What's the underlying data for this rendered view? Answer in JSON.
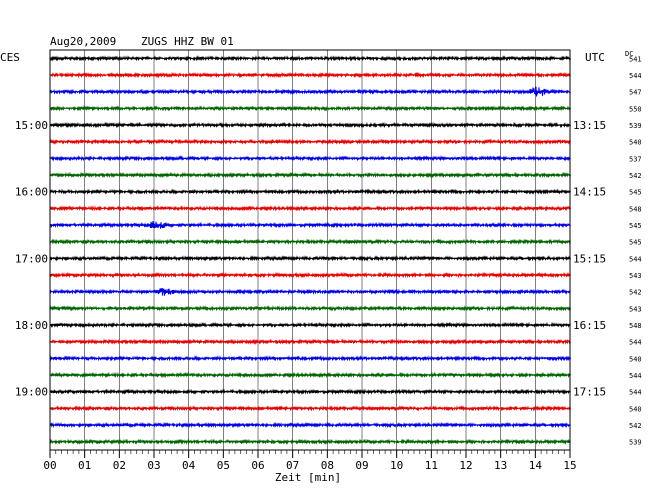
{
  "header": {
    "date": "Aug20,2009",
    "station": "ZUGS HHZ BW 01",
    "left_timezone": "CES",
    "right_timezone": "UTC",
    "dc_label": "DC"
  },
  "chart_data": {
    "type": "line",
    "title": "Aug20,2009   ZUGS HHZ BW 01",
    "xlabel": "Zeit [min]",
    "xlim": [
      0,
      15
    ],
    "x_ticks": [
      "00",
      "01",
      "02",
      "03",
      "04",
      "05",
      "06",
      "07",
      "08",
      "09",
      "10",
      "11",
      "12",
      "13",
      "14",
      "15"
    ],
    "row_minutes": 15,
    "traces_per_hour": 4,
    "trace_count": 24,
    "left_time_labels": [
      {
        "row": 4,
        "text": "15:00"
      },
      {
        "row": 8,
        "text": "16:00"
      },
      {
        "row": 12,
        "text": "17:00"
      },
      {
        "row": 16,
        "text": "18:00"
      },
      {
        "row": 20,
        "text": "19:00"
      }
    ],
    "right_time_labels": [
      {
        "row": 4,
        "text": "13:15"
      },
      {
        "row": 8,
        "text": "14:15"
      },
      {
        "row": 12,
        "text": "15:15"
      },
      {
        "row": 16,
        "text": "16:15"
      },
      {
        "row": 20,
        "text": "17:15"
      }
    ],
    "dc_offsets": [
      541,
      544,
      547,
      550,
      539,
      540,
      537,
      542,
      545,
      548,
      545,
      545,
      544,
      543,
      542,
      543,
      548,
      544,
      540,
      544,
      544,
      540,
      542,
      539
    ],
    "trace_colors": [
      "#000000",
      "#e60000",
      "#0000e6",
      "#006400"
    ],
    "grid": true,
    "events": [
      {
        "row": 2,
        "minute": 14.1,
        "amplitude": 1.8
      },
      {
        "row": 10,
        "minute": 3.1,
        "amplitude": 1.6
      },
      {
        "row": 14,
        "minute": 3.3,
        "amplitude": 1.2
      }
    ]
  }
}
